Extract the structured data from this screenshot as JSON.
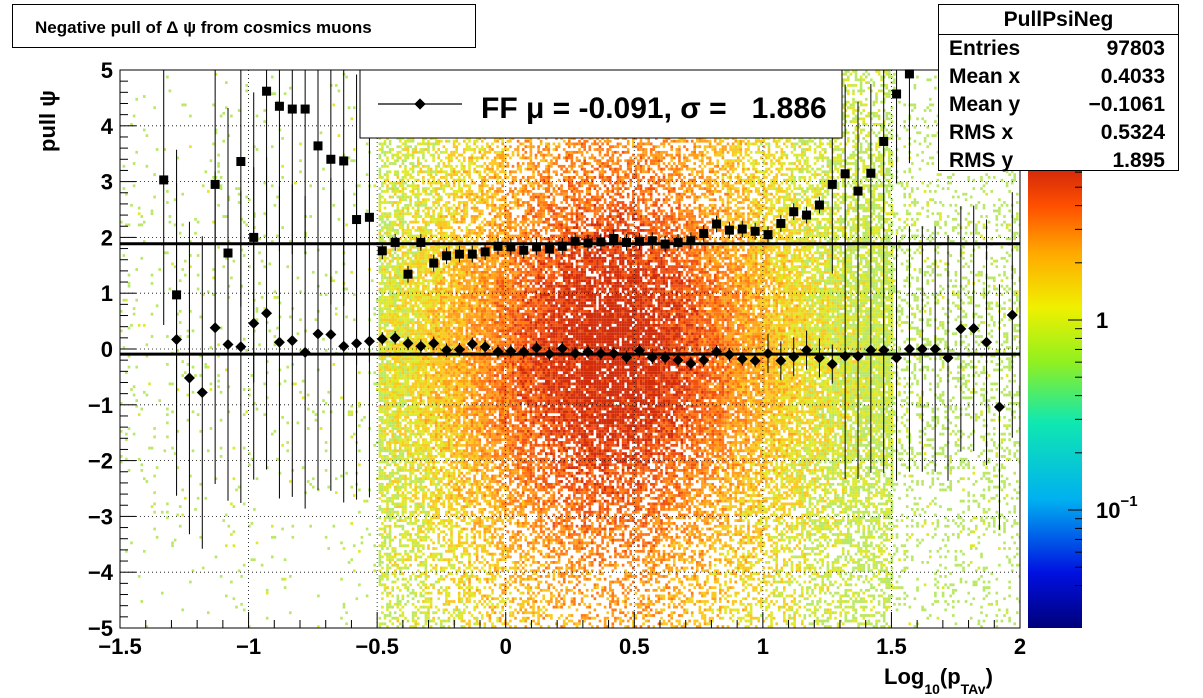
{
  "title": "Negative pull of Δ ψ from cosmics muons",
  "stats": {
    "name": "PullPsiNeg",
    "rows": [
      {
        "key": "Entries",
        "value": "97803"
      },
      {
        "key": "Mean x",
        "value": "0.4033"
      },
      {
        "key": "Mean y",
        "value": "−0.1061"
      },
      {
        "key": "RMS x",
        "value": "0.5324"
      },
      {
        "key": "RMS y",
        "value": "1.895"
      }
    ]
  },
  "chart_data": {
    "type": "heatmap",
    "title": "Negative pull of Δ ψ from cosmics muons",
    "xlabel": "Log10(pTAv)",
    "xlabel_parts": {
      "base": "Log",
      "sub1": "10",
      "mid": "(p",
      "sub2": "TAv",
      "end": ")"
    },
    "ylabel": "pull ψ",
    "xlim": [
      -1.5,
      2
    ],
    "ylim": [
      -5,
      5
    ],
    "x_ticks": [
      "−1.5",
      "−1",
      "−0.5",
      "0",
      "0.5",
      "1",
      "1.5",
      "2"
    ],
    "y_ticks": [
      "−5",
      "−4",
      "−3",
      "−2",
      "−1",
      "0",
      "1",
      "2",
      "3",
      "4",
      "5"
    ],
    "grid": true,
    "colorbar": {
      "scale": "log",
      "labels": [
        {
          "text": "1",
          "value": 1
        },
        {
          "text": "10",
          "sup": "−1",
          "value": 0.1
        }
      ]
    },
    "legend": {
      "position": "top-center",
      "entries": [
        {
          "label": "FF μ = -0.091, σ =   1.886"
        }
      ]
    },
    "fit_lines": [
      {
        "y": 1.886
      },
      {
        "y": -0.091
      }
    ],
    "sigma_points": {
      "x": [
        -1.33,
        -1.28,
        -1.23,
        -1.18,
        -1.13,
        -1.08,
        -1.03,
        -0.98,
        -0.93,
        -0.88,
        -0.83,
        -0.78,
        -0.73,
        -0.68,
        -0.63,
        -0.58,
        -0.53,
        -0.48,
        -0.43,
        -0.38,
        -0.33,
        -0.28,
        -0.23,
        -0.18,
        -0.13,
        -0.08,
        -0.03,
        0.02,
        0.07,
        0.12,
        0.17,
        0.22,
        0.27,
        0.32,
        0.37,
        0.42,
        0.47,
        0.52,
        0.57,
        0.62,
        0.67,
        0.72,
        0.77,
        0.82,
        0.87,
        0.92,
        0.97,
        1.02,
        1.07,
        1.12,
        1.17,
        1.22,
        1.27,
        1.32,
        1.37,
        1.42,
        1.47,
        1.52,
        1.57
      ],
      "y": [
        3.03,
        0.97,
        null,
        null,
        2.95,
        1.72,
        3.36,
        2.0,
        4.62,
        4.35,
        4.3,
        4.3,
        3.64,
        3.4,
        3.37,
        2.32,
        2.36,
        1.76,
        1.91,
        1.34,
        1.91,
        1.54,
        1.67,
        1.7,
        1.7,
        1.74,
        1.84,
        1.83,
        1.77,
        1.83,
        1.79,
        1.84,
        1.93,
        1.9,
        1.92,
        1.98,
        1.91,
        1.93,
        1.94,
        1.88,
        1.91,
        1.94,
        2.07,
        2.24,
        2.13,
        2.15,
        2.11,
        2.05,
        2.25,
        2.46,
        2.4,
        2.58,
        2.95,
        3.14,
        2.83,
        3.15,
        3.72,
        4.57,
        4.93
      ]
    },
    "mean_points": {
      "x": [
        -1.33,
        -1.28,
        -1.23,
        -1.18,
        -1.13,
        -1.08,
        -1.03,
        -0.98,
        -0.93,
        -0.88,
        -0.83,
        -0.78,
        -0.73,
        -0.68,
        -0.63,
        -0.58,
        -0.53,
        -0.48,
        -0.43,
        -0.38,
        -0.33,
        -0.28,
        -0.23,
        -0.18,
        -0.13,
        -0.08,
        -0.03,
        0.02,
        0.07,
        0.12,
        0.17,
        0.22,
        0.27,
        0.32,
        0.37,
        0.42,
        0.47,
        0.52,
        0.57,
        0.62,
        0.67,
        0.72,
        0.77,
        0.82,
        0.87,
        0.92,
        0.97,
        1.02,
        1.07,
        1.12,
        1.17,
        1.22,
        1.27,
        1.32,
        1.37,
        1.42,
        1.47,
        1.52,
        1.57,
        1.62,
        1.67,
        1.72,
        1.77,
        1.82,
        1.87,
        1.92,
        1.97
      ],
      "y": [
        null,
        0.17,
        -0.52,
        -0.78,
        0.38,
        0.08,
        0.04,
        0.46,
        0.64,
        0.12,
        0.15,
        -0.06,
        0.27,
        0.26,
        0.05,
        0.1,
        0.14,
        0.18,
        0.2,
        0.1,
        0.05,
        0.1,
        -0.02,
        -0.01,
        0.09,
        0.04,
        -0.05,
        -0.04,
        -0.05,
        0.02,
        -0.09,
        0.01,
        -0.08,
        -0.05,
        -0.08,
        -0.08,
        -0.15,
        -0.03,
        -0.15,
        -0.16,
        -0.2,
        -0.26,
        -0.2,
        -0.05,
        -0.1,
        -0.18,
        -0.21,
        -0.08,
        -0.21,
        -0.14,
        -0.02,
        -0.16,
        -0.27,
        -0.13,
        -0.13,
        -0.02,
        -0.02,
        -0.16,
        0.0,
        0.0,
        0.0,
        -0.16,
        0.36,
        0.37,
        0.12,
        -1.04,
        0.61
      ]
    }
  },
  "colors": {
    "heat_low": "#b8e866",
    "heat_mid": "#ff8c1a",
    "heat_high": "#e03010",
    "colorbar_top": "#d42a0a",
    "colorbar_bottom": "#00007a"
  }
}
